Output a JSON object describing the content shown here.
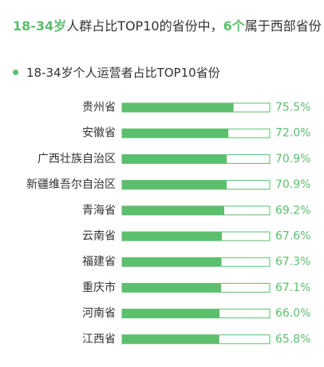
{
  "headline": {
    "part1": "18-34岁",
    "part2": "人群占比TOP10的省份中，",
    "part3": "6个",
    "part4": "属于西部省份"
  },
  "colors": {
    "accent": "#5cbf6e",
    "bar_fill": "#5cbf6e",
    "bar_border": "#5cbf6e",
    "bar_track": "#ffffff",
    "value_text": "#5cbf6e",
    "label_text": "#333333"
  },
  "chart_data": {
    "type": "bar",
    "orientation": "horizontal",
    "title": "18-34岁个人运营者占比TOP10省份",
    "categories": [
      "贵州省",
      "安徽省",
      "广西壮族自治区",
      "新疆维吾尔自治区",
      "青海省",
      "云南省",
      "福建省",
      "重庆市",
      "河南省",
      "江西省"
    ],
    "values": [
      75.5,
      72.0,
      70.9,
      70.9,
      69.2,
      67.6,
      67.3,
      67.1,
      66.0,
      65.8
    ],
    "value_labels": [
      "75.5%",
      "72.0%",
      "70.9%",
      "70.9%",
      "69.2%",
      "67.6%",
      "67.3%",
      "67.1%",
      "66.0%",
      "65.8%"
    ],
    "unit": "%",
    "xlim": [
      0,
      100
    ],
    "grid": false,
    "legend": "none"
  }
}
